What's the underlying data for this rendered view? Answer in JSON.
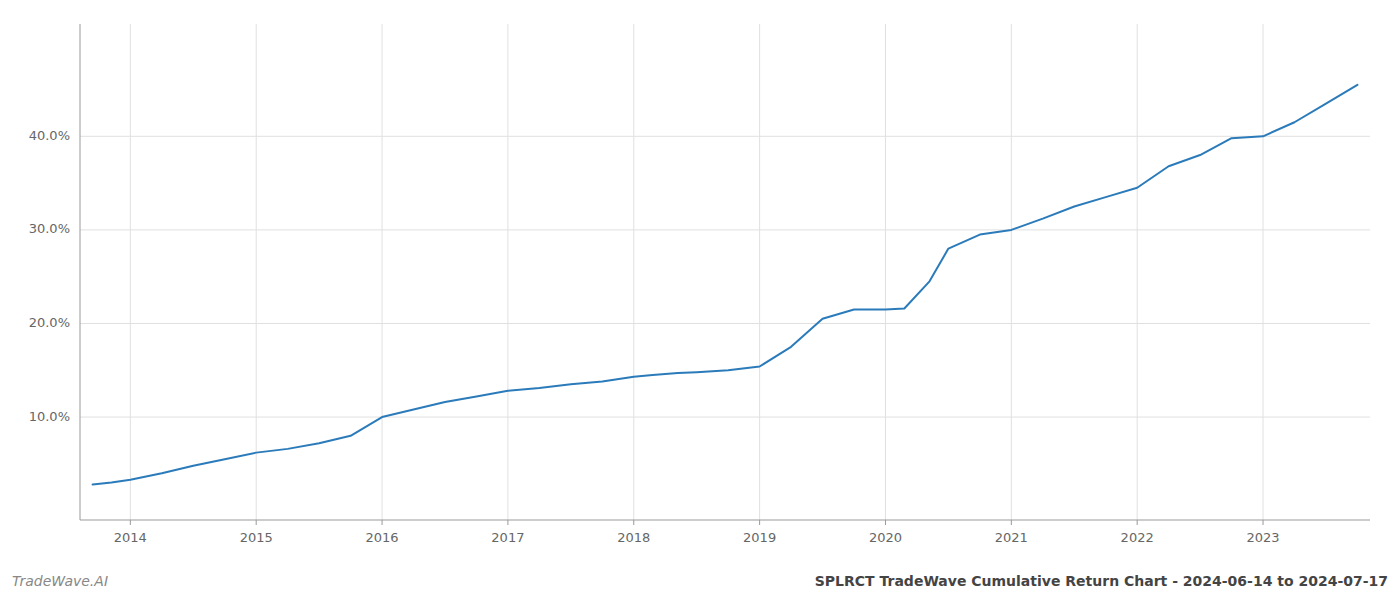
{
  "chart_data": {
    "type": "line",
    "title": "SPLRCT TradeWave Cumulative Return Chart - 2024-06-14 to 2024-07-17",
    "annotations": [
      "TradeWave.AI"
    ],
    "color": "#2b7bba",
    "grid": true,
    "xlim": [
      2013.6,
      2023.85
    ],
    "ylim": [
      -0.01,
      0.52
    ],
    "xticks": [
      2014,
      2015,
      2016,
      2017,
      2018,
      2019,
      2020,
      2021,
      2022,
      2023
    ],
    "yticks": [
      {
        "value": 0.1,
        "label": "10.0%"
      },
      {
        "value": 0.2,
        "label": "20.0%"
      },
      {
        "value": 0.3,
        "label": "30.0%"
      },
      {
        "value": 0.4,
        "label": "40.0%"
      }
    ],
    "x": [
      2013.7,
      2013.85,
      2014.0,
      2014.25,
      2014.5,
      2014.75,
      2015.0,
      2015.25,
      2015.5,
      2015.75,
      2016.0,
      2016.25,
      2016.5,
      2016.75,
      2017.0,
      2017.25,
      2017.5,
      2017.75,
      2018.0,
      2018.15,
      2018.35,
      2018.5,
      2018.75,
      2019.0,
      2019.25,
      2019.5,
      2019.75,
      2020.0,
      2020.15,
      2020.35,
      2020.5,
      2020.75,
      2021.0,
      2021.25,
      2021.5,
      2021.75,
      2022.0,
      2022.25,
      2022.5,
      2022.75,
      2023.0,
      2023.25,
      2023.5,
      2023.75
    ],
    "values": [
      0.028,
      0.03,
      0.033,
      0.04,
      0.048,
      0.055,
      0.062,
      0.066,
      0.072,
      0.08,
      0.1,
      0.108,
      0.116,
      0.122,
      0.128,
      0.131,
      0.135,
      0.138,
      0.143,
      0.145,
      0.147,
      0.148,
      0.15,
      0.154,
      0.175,
      0.205,
      0.215,
      0.215,
      0.216,
      0.245,
      0.28,
      0.295,
      0.3,
      0.312,
      0.325,
      0.335,
      0.345,
      0.368,
      0.38,
      0.398,
      0.4,
      0.415,
      0.435,
      0.455
    ]
  }
}
